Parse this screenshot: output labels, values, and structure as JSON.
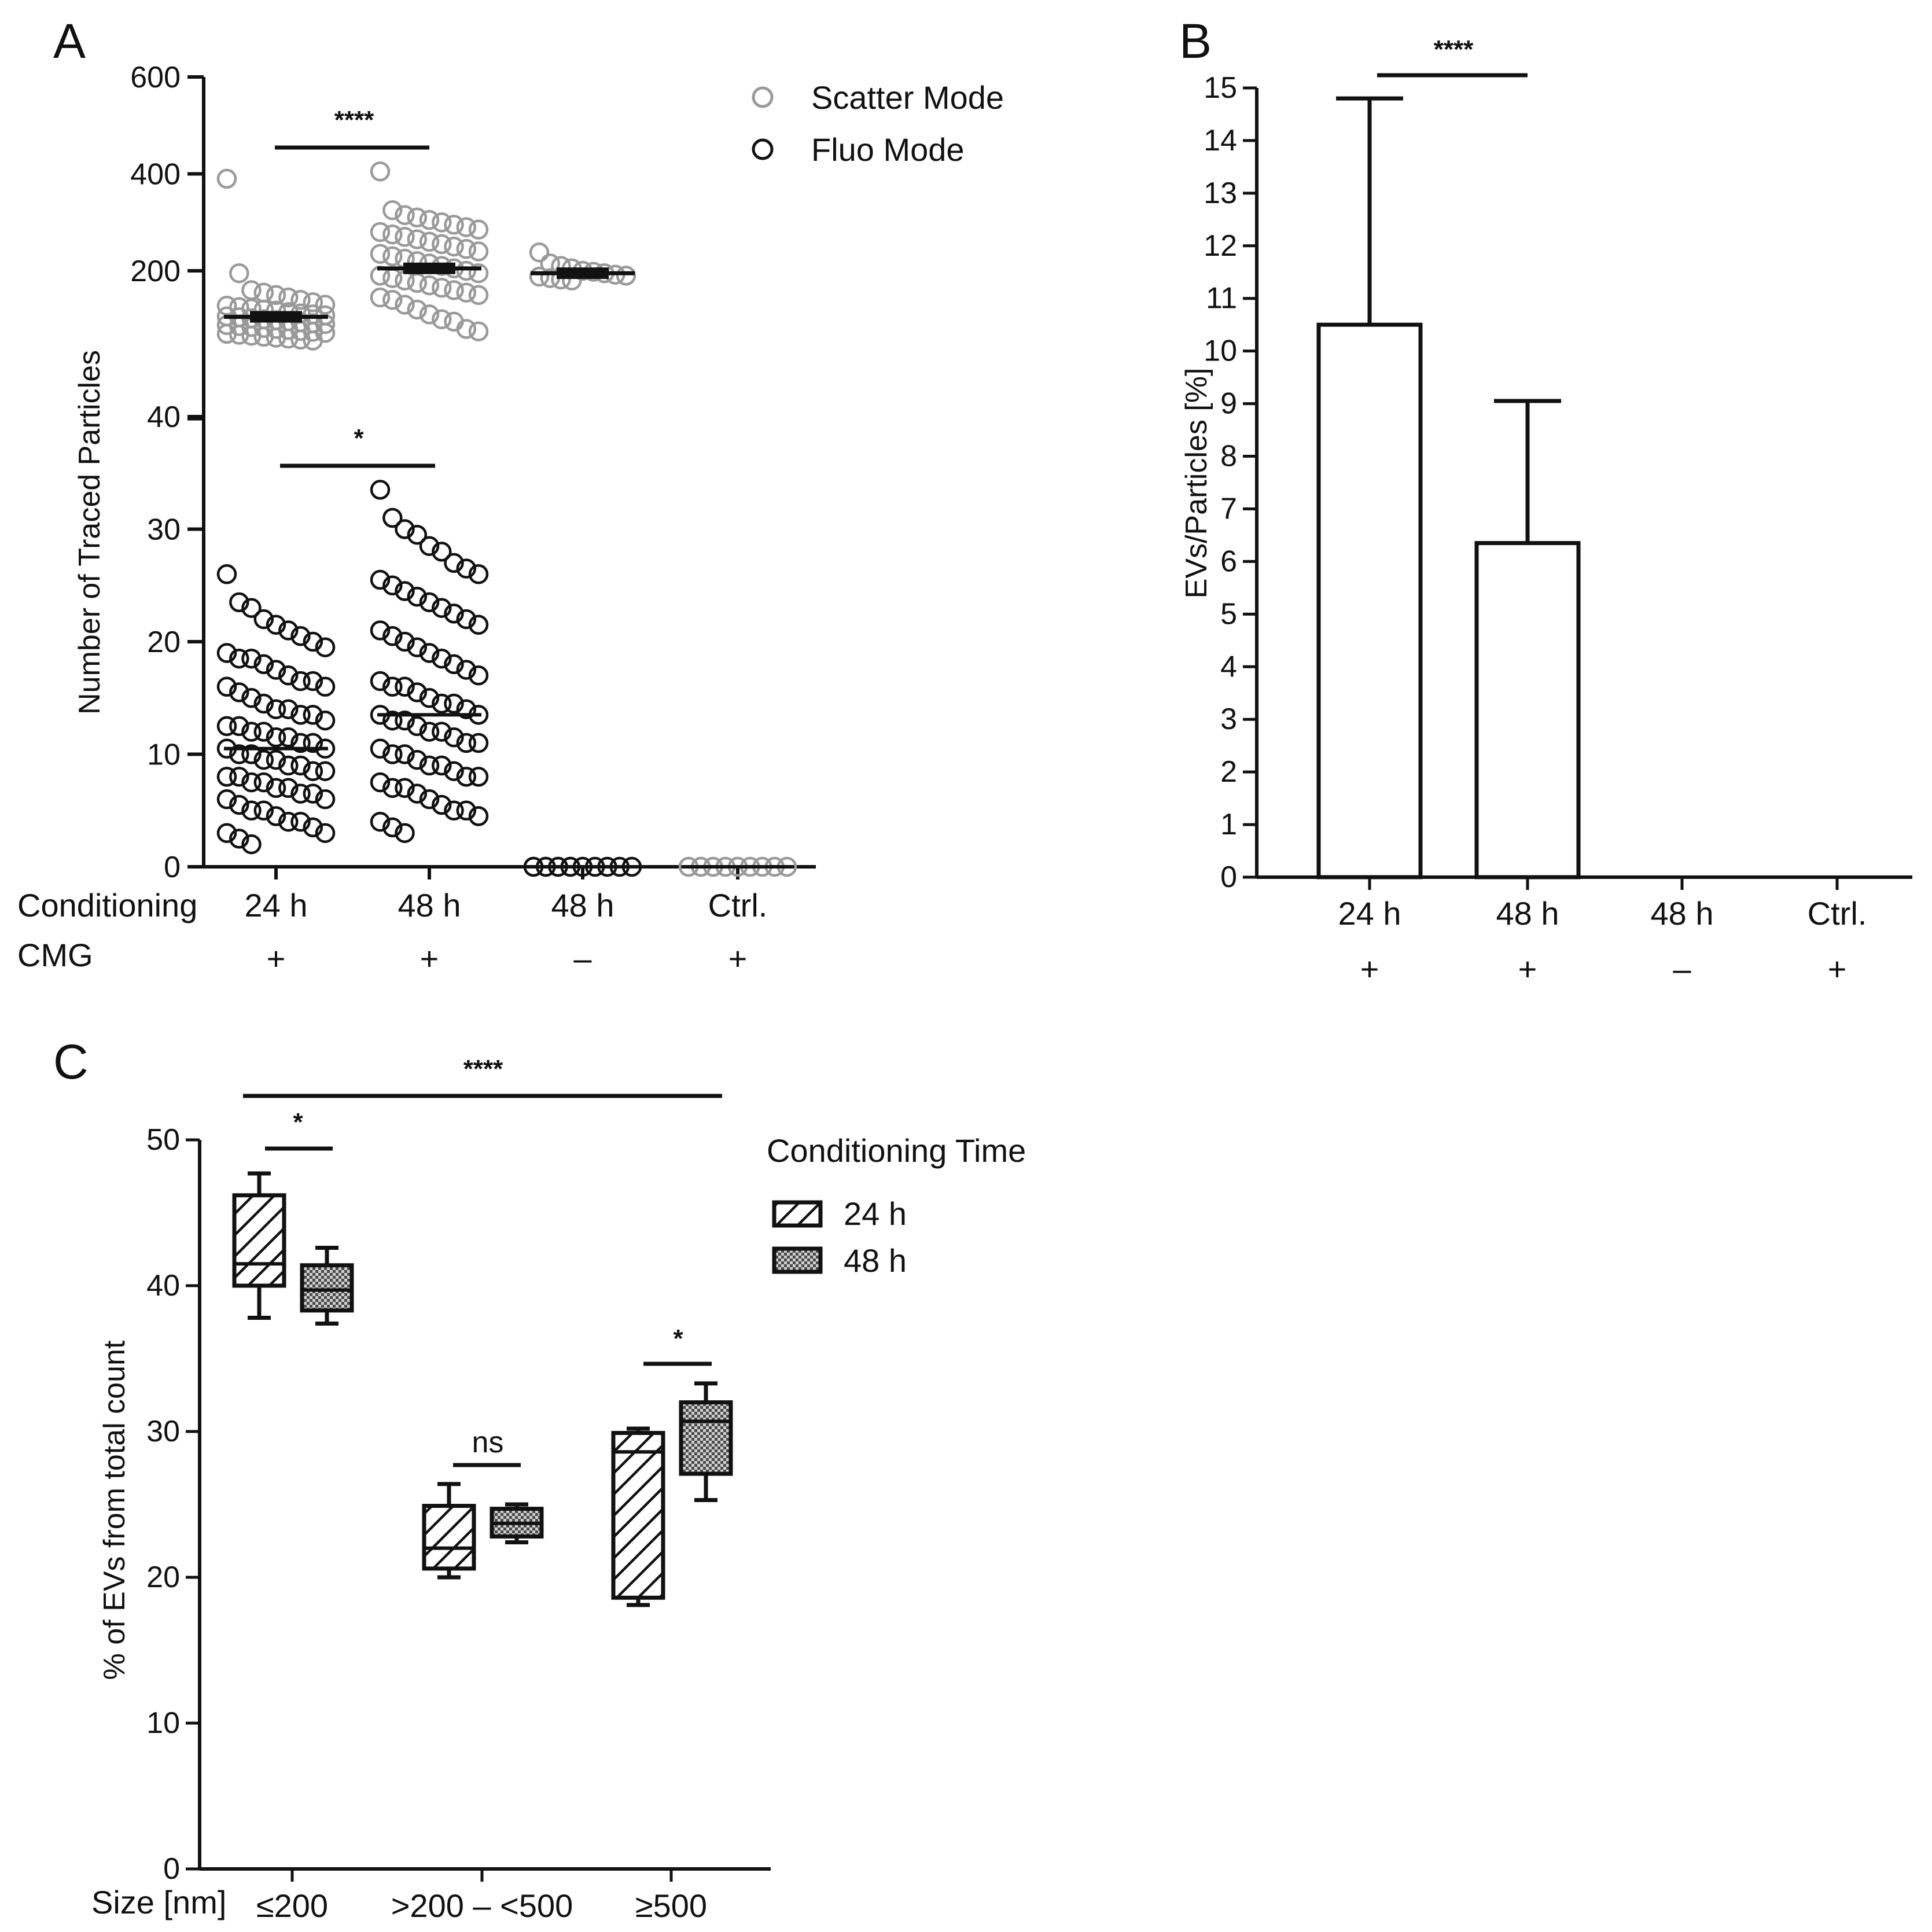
{
  "colors": {
    "ink": "#111111",
    "scatter": "#9a9a9a",
    "fluo": "#111111",
    "background": "#ffffff"
  },
  "chart_data": [
    {
      "panel": "A",
      "type": "scatter",
      "ylabel": "Number of Traced Particles",
      "axis_break": true,
      "upper_segment": {
        "ylim": [
          50,
          600
        ],
        "ticks": [
          "600",
          "400",
          "200"
        ]
      },
      "lower_segment": {
        "ylim": [
          0,
          40
        ],
        "ticks": [
          "40",
          "30",
          "20",
          "10",
          "0"
        ]
      },
      "row_labels": {
        "conditioning": "Conditioning",
        "cmg": "CMG"
      },
      "categories": [
        {
          "time": "24 h",
          "cmg": "+"
        },
        {
          "time": "48 h",
          "cmg": "+"
        },
        {
          "time": "48 h",
          "cmg": "–"
        },
        {
          "time": "Ctrl.",
          "cmg": "+"
        }
      ],
      "legend": [
        {
          "label": "Scatter Mode",
          "series": "scatter",
          "icon": "open-circle-gray"
        },
        {
          "label": "Fluo Mode",
          "series": "fluo",
          "icon": "open-circle-black"
        }
      ],
      "series": [
        {
          "name": "Scatter Mode",
          "means": [
            105,
            205,
            195,
            null
          ],
          "points": [
            [
              390,
              195,
              160,
              155,
              150,
              145,
              140,
              135,
              130,
              128,
              125,
              122,
              120,
              118,
              115,
              112,
              110,
              108,
              106,
              104,
              102,
              100,
              98,
              96,
              94,
              92,
              90,
              88,
              86,
              84,
              82,
              80,
              78,
              76,
              74,
              72,
              70,
              68,
              66,
              64,
              62,
              60,
              58,
              56
            ],
            [
              405,
              325,
              315,
              310,
              305,
              300,
              295,
              290,
              285,
              280,
              275,
              270,
              265,
              260,
              255,
              250,
              245,
              240,
              235,
              230,
              225,
              220,
              215,
              210,
              205,
              200,
              195,
              190,
              185,
              180,
              175,
              170,
              165,
              160,
              155,
              150,
              145,
              140,
              130,
              120,
              110,
              100,
              95,
              80,
              75
            ],
            [
              238,
              215,
              210,
              205,
              200,
              198,
              195,
              192,
              190,
              188,
              185,
              182,
              180
            ],
            []
          ]
        },
        {
          "name": "Fluo Mode",
          "means": [
            10.5,
            13.5,
            0,
            0
          ],
          "points": [
            [
              26,
              23.5,
              23,
              22,
              21.5,
              21,
              20.5,
              20,
              19.5,
              19,
              18.5,
              18.5,
              18,
              17.5,
              17,
              16.5,
              16.5,
              16,
              16,
              15.5,
              15,
              14.5,
              14,
              14,
              13.5,
              13.5,
              13,
              12.5,
              12.5,
              12,
              12,
              11.5,
              11.5,
              11,
              11,
              10.5,
              10.5,
              10,
              10,
              9.5,
              9.5,
              9,
              9,
              8.5,
              8.5,
              8,
              8,
              7.5,
              7.5,
              7,
              7,
              6.5,
              6.5,
              6,
              6,
              5.5,
              5,
              5,
              4.5,
              4,
              4,
              3.5,
              3,
              3,
              2.5,
              2
            ],
            [
              33.5,
              31,
              30,
              29.5,
              28.5,
              28,
              27,
              26.5,
              26,
              25.5,
              25,
              24.5,
              24,
              23.5,
              23,
              22.5,
              22,
              21.5,
              21,
              20.5,
              20,
              19.5,
              19,
              18.5,
              18,
              17.5,
              17,
              16.5,
              16,
              16,
              15.5,
              15,
              14.5,
              14.5,
              14,
              13.5,
              13.5,
              13,
              13,
              12.5,
              12,
              12,
              11.5,
              11,
              11,
              10.5,
              10,
              10,
              9.5,
              9,
              9,
              8.5,
              8,
              8,
              7.5,
              7,
              7,
              6.5,
              6,
              5.5,
              5,
              5,
              4.5,
              4,
              3.5,
              3
            ],
            [
              0,
              0,
              0,
              0,
              0,
              0,
              0,
              0,
              0,
              0,
              0,
              0,
              0
            ],
            [
              0,
              0,
              0,
              0,
              0,
              0,
              0,
              0,
              0,
              0,
              0,
              0
            ]
          ]
        }
      ],
      "significance": [
        {
          "label": "****",
          "from": 0,
          "to": 1,
          "segment": "upper"
        },
        {
          "label": "*",
          "from": 0,
          "to": 1,
          "segment": "lower"
        }
      ]
    },
    {
      "panel": "B",
      "type": "bar",
      "ylabel": "EVs/Particles [%]",
      "ylim": [
        0,
        15
      ],
      "yticks": [
        "0",
        "1",
        "2",
        "3",
        "4",
        "5",
        "6",
        "7",
        "8",
        "9",
        "10",
        "11",
        "12",
        "13",
        "14",
        "15"
      ],
      "categories": [
        {
          "time": "24 h",
          "cmg": "+"
        },
        {
          "time": "48 h",
          "cmg": "+"
        },
        {
          "time": "48 h",
          "cmg": "–"
        },
        {
          "time": "Ctrl.",
          "cmg": "+"
        }
      ],
      "values": [
        10.5,
        6.35,
        0,
        0
      ],
      "errors": [
        4.3,
        2.7,
        0,
        0
      ],
      "significance": [
        {
          "label": "****",
          "from": 0,
          "to": 1
        }
      ]
    },
    {
      "panel": "C",
      "type": "box",
      "ylabel": "% of EVs from total count",
      "ylim": [
        0,
        50
      ],
      "yticks": [
        "0",
        "10",
        "20",
        "30",
        "40",
        "50"
      ],
      "x_title": "Size [nm]",
      "categories": [
        "≤200",
        ">200 – <500",
        "≥500"
      ],
      "legend_title": "Conditioning Time",
      "series": [
        {
          "name": "24 h",
          "pattern": "hatch",
          "boxes": [
            {
              "min": 37.8,
              "q1": 40.0,
              "median": 41.5,
              "q3": 46.2,
              "max": 47.7
            },
            {
              "min": 20.0,
              "q1": 20.6,
              "median": 22.0,
              "q3": 24.9,
              "max": 26.4
            },
            {
              "min": 18.1,
              "q1": 18.6,
              "median": 28.6,
              "q3": 29.9,
              "max": 30.2
            }
          ]
        },
        {
          "name": "48 h",
          "pattern": "dots",
          "boxes": [
            {
              "min": 37.4,
              "q1": 38.3,
              "median": 39.7,
              "q3": 41.4,
              "max": 42.6
            },
            {
              "min": 22.4,
              "q1": 22.8,
              "median": 23.7,
              "q3": 24.7,
              "max": 25.0
            },
            {
              "min": 25.3,
              "q1": 27.1,
              "median": 30.7,
              "q3": 32.0,
              "max": 33.3
            }
          ]
        }
      ],
      "significance": [
        {
          "label": "****",
          "scope": "all"
        },
        {
          "label": "*",
          "group": 0
        },
        {
          "label": "ns",
          "group": 1
        },
        {
          "label": "*",
          "group": 2
        }
      ]
    }
  ]
}
